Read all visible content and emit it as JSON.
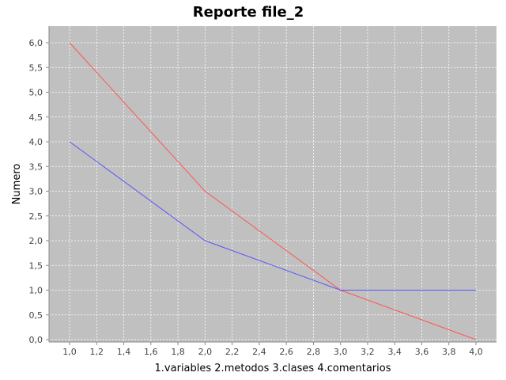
{
  "chart_data": {
    "type": "line",
    "title": "Reporte file_2",
    "xlabel": "1.variables  2.metodos  3.clases  4.comentarios",
    "ylabel": "Numero",
    "xlim": [
      1.0,
      4.0
    ],
    "ylim": [
      0.0,
      6.0
    ],
    "x_ticks": [
      1.0,
      1.2,
      1.4,
      1.6,
      1.8,
      2.0,
      2.2,
      2.4,
      2.6,
      2.8,
      3.0,
      3.2,
      3.4,
      3.6,
      3.8,
      4.0
    ],
    "x_tick_labels": [
      "1,0",
      "1,2",
      "1,4",
      "1,6",
      "1,8",
      "2,0",
      "2,2",
      "2,4",
      "2,6",
      "2,8",
      "3,0",
      "3,2",
      "3,4",
      "3,6",
      "3,8",
      "4,0"
    ],
    "y_ticks": [
      0.0,
      0.5,
      1.0,
      1.5,
      2.0,
      2.5,
      3.0,
      3.5,
      4.0,
      4.5,
      5.0,
      5.5,
      6.0
    ],
    "y_tick_labels": [
      "0,0",
      "0,5",
      "1,0",
      "1,5",
      "2,0",
      "2,5",
      "3,0",
      "3,5",
      "4,0",
      "4,5",
      "5,0",
      "5,5",
      "6,0"
    ],
    "grid": true,
    "legend": false,
    "plot_background": "#c0c0c0",
    "grid_color": "#ffffff",
    "series": [
      {
        "color": "#ff5555",
        "x": [
          1,
          2,
          3,
          4
        ],
        "y": [
          6,
          3,
          1,
          0
        ]
      },
      {
        "color": "#5555ff",
        "x": [
          1,
          2,
          3,
          4
        ],
        "y": [
          4,
          2,
          1,
          1
        ]
      }
    ]
  }
}
